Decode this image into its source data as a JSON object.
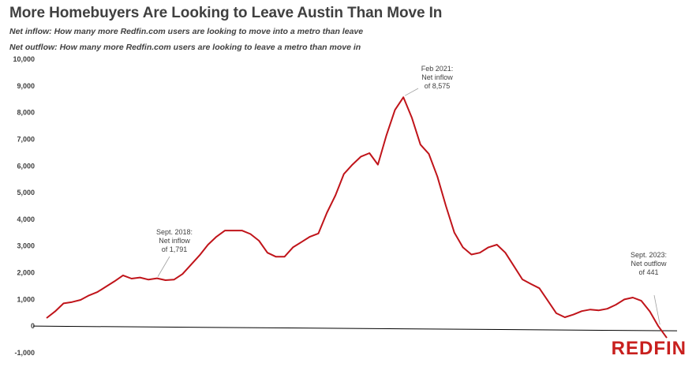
{
  "chart_data": {
    "type": "line",
    "title": "More Homebuyers Are Looking to Leave Austin Than Move In",
    "subtitle_1": "Net inflow: How many more Redfin.com users are looking to move into a metro than leave",
    "subtitle_2": "Net outflow: How many more Redfin.com users are looking to leave a metro than move in",
    "xlabel": "",
    "ylabel": "",
    "ylim": [
      -1000,
      10000
    ],
    "yticks": [
      -1000,
      0,
      1000,
      2000,
      3000,
      4000,
      5000,
      6000,
      7000,
      8000,
      9000,
      10000
    ],
    "ytick_labels": [
      "-1,000",
      "0",
      "1,000",
      "2,000",
      "3,000",
      "4,000",
      "5,000",
      "6,000",
      "7,000",
      "8,000",
      "9,000",
      "10,000"
    ],
    "grid": false,
    "color": "#c0141a",
    "series": [
      {
        "values": [
          300,
          550,
          850,
          900,
          980,
          1150,
          1280,
          1480,
          1680,
          1900,
          1780,
          1820,
          1740,
          1791,
          1720,
          1740,
          1950,
          2300,
          2650,
          3050,
          3350,
          3580,
          3580,
          3580,
          3450,
          3200,
          2750,
          2600,
          2600,
          2950,
          3150,
          3350,
          3470,
          4250,
          4900,
          5700,
          6050,
          6350,
          6480,
          6050,
          7150,
          8100,
          8575,
          7800,
          6800,
          6450,
          5600,
          4500,
          3500,
          2950,
          2680,
          2750,
          2950,
          3050,
          2750,
          2250,
          1750,
          1580,
          1420,
          950,
          480,
          330,
          430,
          560,
          620,
          590,
          650,
          800,
          1000,
          1070,
          950,
          550,
          0,
          -441
        ]
      }
    ],
    "annotations": [
      {
        "index": 13,
        "lines": [
          "Sept. 2018:",
          "Net inflow",
          "of 1,791"
        ]
      },
      {
        "index": 42,
        "lines": [
          "Feb 2021:",
          "Net inflow",
          "of 8,575"
        ]
      },
      {
        "index": 73,
        "lines": [
          "Sept. 2023:",
          "Net outflow",
          "of 441"
        ]
      }
    ]
  },
  "brand": {
    "logo_text": "REDFIN",
    "logo_color": "#c8201e"
  }
}
